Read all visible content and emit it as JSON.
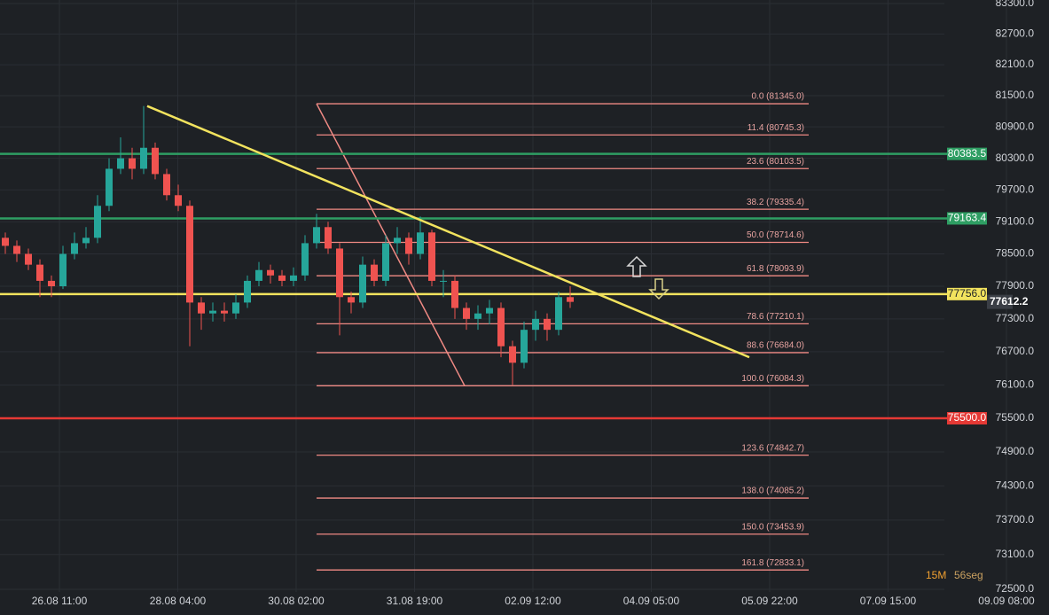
{
  "chart_data": {
    "type": "candlestick",
    "log_scale": true,
    "grid": true,
    "ylim": [
      72500,
      83300
    ],
    "yticks": [
      {
        "value": 83300,
        "label": "83300.0"
      },
      {
        "value": 82700,
        "label": "82700.0"
      },
      {
        "value": 82100,
        "label": "82100.0"
      },
      {
        "value": 81500,
        "label": "81500.0"
      },
      {
        "value": 80900,
        "label": "80900.0"
      },
      {
        "value": 80300,
        "label": "80300.0"
      },
      {
        "value": 79700,
        "label": "79700.0"
      },
      {
        "value": 79100,
        "label": "79100.0"
      },
      {
        "value": 78500,
        "label": "78500.0"
      },
      {
        "value": 77900,
        "label": "77900.0"
      },
      {
        "value": 77300,
        "label": "77300.0"
      },
      {
        "value": 76700,
        "label": "76700.0"
      },
      {
        "value": 76100,
        "label": "76100.0"
      },
      {
        "value": 75500,
        "label": "75500.0"
      },
      {
        "value": 74900,
        "label": "74900.0"
      },
      {
        "value": 74300,
        "label": "74300.0"
      },
      {
        "value": 73700,
        "label": "73700.0"
      },
      {
        "value": 73100,
        "label": "73100.0"
      },
      {
        "value": 72500,
        "label": "72500.0"
      }
    ],
    "xticks": [
      "26.08 11:00",
      "28.08 04:00",
      "30.08 02:00",
      "31.08 19:00",
      "02.09 12:00",
      "04.09 05:00",
      "05.09 22:00",
      "07.09 15:00",
      "09.09 08:00"
    ],
    "up_color": "#26a69a",
    "down_color": "#ef5350",
    "open": [
      78800,
      78650,
      78500,
      78300,
      78000,
      77900,
      78500,
      78700,
      78800,
      79400,
      80100,
      80300,
      80100,
      80500,
      80000,
      79600,
      79400,
      77600,
      77400,
      77450,
      77400,
      77600,
      78000,
      78200,
      78100,
      78000,
      78100,
      78700,
      79000,
      78600,
      77700,
      77600,
      78300,
      78000,
      78700,
      78800,
      78500,
      78900,
      78000,
      78000,
      77500,
      77300,
      77400,
      77500,
      76800,
      76500,
      77100,
      77300,
      77100,
      77700
    ],
    "high": [
      78900,
      78750,
      78600,
      78400,
      78100,
      78650,
      78900,
      79000,
      79600,
      80300,
      80700,
      80500,
      81300,
      80600,
      80100,
      79800,
      79500,
      77700,
      77600,
      77600,
      77750,
      78100,
      78350,
      78300,
      78200,
      78250,
      78850,
      79250,
      79100,
      78700,
      77800,
      78450,
      78400,
      78850,
      79000,
      78900,
      79200,
      78950,
      78200,
      78100,
      77600,
      77550,
      77650,
      77600,
      76900,
      77250,
      77450,
      77400,
      77800,
      77900
    ],
    "low": [
      78500,
      78350,
      78200,
      77700,
      77700,
      77850,
      78400,
      78600,
      78700,
      79300,
      80000,
      79900,
      80000,
      79900,
      79500,
      79300,
      76800,
      77100,
      77250,
      77250,
      77300,
      77500,
      77900,
      77950,
      77900,
      77900,
      78000,
      78600,
      78500,
      77000,
      77400,
      77500,
      77900,
      77900,
      78500,
      78300,
      78400,
      77900,
      77700,
      77300,
      77100,
      77100,
      77200,
      76600,
      76100,
      76400,
      76900,
      76900,
      77000,
      77500
    ],
    "close": [
      78650,
      78500,
      78300,
      78000,
      77900,
      78500,
      78700,
      78800,
      79400,
      80100,
      80300,
      80100,
      80500,
      80000,
      79600,
      79400,
      77600,
      77400,
      77450,
      77400,
      77600,
      78000,
      78200,
      78100,
      78000,
      78100,
      78700,
      79000,
      78600,
      77700,
      77600,
      78300,
      78000,
      78700,
      78800,
      78500,
      78900,
      78000,
      78000,
      77500,
      77300,
      77400,
      77500,
      76800,
      76500,
      77100,
      77300,
      77100,
      77700,
      77612.2
    ],
    "levels": [
      {
        "value": 80383.5,
        "label": "80383.5",
        "color": "#2e9e63"
      },
      {
        "value": 79163.4,
        "label": "79163.4",
        "color": "#2e9e63"
      },
      {
        "value": 77756.0,
        "label": "77756.0",
        "color": "#f2e35e"
      },
      {
        "value": 75500.0,
        "label": "75500.0",
        "color": "#e53935"
      }
    ],
    "current_price": 77612.2,
    "fib_color": "#f08a84",
    "fib": [
      {
        "value": 81345.0,
        "label": "0.0 (81345.0)"
      },
      {
        "value": 80745.3,
        "label": "11.4 (80745.3)"
      },
      {
        "value": 80103.5,
        "label": "23.6 (80103.5)"
      },
      {
        "value": 79335.4,
        "label": "38.2 (79335.4)"
      },
      {
        "value": 78714.6,
        "label": "50.0 (78714.6)"
      },
      {
        "value": 78093.9,
        "label": "61.8 (78093.9)"
      },
      {
        "value": 77210.1,
        "label": "78.6 (77210.1)"
      },
      {
        "value": 76684.0,
        "label": "88.6 (76684.0)"
      },
      {
        "value": 76084.3,
        "label": "100.0 (76084.3)"
      },
      {
        "value": 74842.7,
        "label": "123.6 (74842.7)"
      },
      {
        "value": 74085.2,
        "label": "138.0 (74085.2)"
      },
      {
        "value": 73453.9,
        "label": "150.0 (73453.9)"
      },
      {
        "value": 72833.1,
        "label": "161.8 (72833.1)"
      }
    ],
    "trendline": {
      "start": 81300,
      "end": 76600,
      "color": "#f2e35e"
    },
    "timeframe": "15M",
    "countdown": "56seg"
  }
}
